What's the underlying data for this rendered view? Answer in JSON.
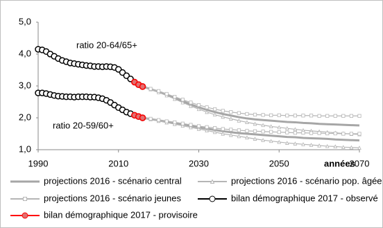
{
  "chart_data": {
    "type": "line",
    "x_label": "années",
    "annotations": [
      "ratio 20-64/65+",
      "ratio 20-59/60+"
    ],
    "xlim": [
      1990,
      2070
    ],
    "xticks": [
      1990,
      2010,
      2030,
      2050,
      2070
    ],
    "ylim": [
      1,
      5
    ],
    "yticks": [
      {
        "value": 1,
        "label": "1,0"
      },
      {
        "value": 2,
        "label": "2,0"
      },
      {
        "value": 3,
        "label": "3,0"
      },
      {
        "value": 4,
        "label": "4,0"
      },
      {
        "value": 5,
        "label": "5,0"
      }
    ],
    "grid": false,
    "series": [
      {
        "name": "projections 2016 - scénario central",
        "color": "#a6a6a6",
        "marker": "none",
        "x": [
          2016,
          2018,
          2020,
          2022,
          2024,
          2026,
          2028,
          2030,
          2032,
          2034,
          2036,
          2038,
          2040,
          2042,
          2044,
          2046,
          2048,
          2050,
          2052,
          2054,
          2056,
          2058,
          2060,
          2062,
          2064,
          2066,
          2068,
          2070
        ],
        "values": [
          2.98,
          2.9,
          2.82,
          2.72,
          2.62,
          2.52,
          2.42,
          2.33,
          2.25,
          2.18,
          2.12,
          2.07,
          2.02,
          1.98,
          1.95,
          1.93,
          1.91,
          1.89,
          1.87,
          1.86,
          1.84,
          1.83,
          1.81,
          1.8,
          1.79,
          1.78,
          1.77,
          1.76
        ],
        "values2": [
          2.0,
          1.96,
          1.92,
          1.88,
          1.84,
          1.8,
          1.75,
          1.7,
          1.66,
          1.62,
          1.58,
          1.55,
          1.52,
          1.5,
          1.48,
          1.46,
          1.44,
          1.42,
          1.4,
          1.39,
          1.37,
          1.36,
          1.35,
          1.34,
          1.32,
          1.31,
          1.3,
          1.29
        ]
      },
      {
        "name": "projections 2016 - scénario pop. âgée",
        "color": "#b5b5b5",
        "marker": "triangle",
        "x": [
          2016,
          2018,
          2020,
          2022,
          2024,
          2026,
          2028,
          2030,
          2032,
          2034,
          2036,
          2038,
          2040,
          2042,
          2044,
          2046,
          2048,
          2050,
          2052,
          2054,
          2056,
          2058,
          2060,
          2062,
          2064,
          2066,
          2068,
          2070
        ],
        "values": [
          2.98,
          2.89,
          2.8,
          2.7,
          2.59,
          2.48,
          2.37,
          2.27,
          2.18,
          2.1,
          2.03,
          1.97,
          1.91,
          1.86,
          1.81,
          1.77,
          1.73,
          1.7,
          1.67,
          1.64,
          1.61,
          1.59,
          1.57,
          1.55,
          1.53,
          1.51,
          1.49,
          1.48
        ],
        "values2": [
          2.0,
          1.95,
          1.9,
          1.85,
          1.8,
          1.75,
          1.7,
          1.65,
          1.6,
          1.55,
          1.5,
          1.46,
          1.42,
          1.38,
          1.34,
          1.3,
          1.27,
          1.24,
          1.21,
          1.19,
          1.17,
          1.15,
          1.13,
          1.11,
          1.1,
          1.08,
          1.07,
          1.06
        ]
      },
      {
        "name": "projections 2016 - scénario jeunes",
        "color": "#b5b5b5",
        "marker": "square",
        "x": [
          2016,
          2018,
          2020,
          2022,
          2024,
          2026,
          2028,
          2030,
          2032,
          2034,
          2036,
          2038,
          2040,
          2042,
          2044,
          2046,
          2048,
          2050,
          2052,
          2054,
          2056,
          2058,
          2060,
          2062,
          2064,
          2066,
          2068,
          2070
        ],
        "values": [
          2.98,
          2.91,
          2.84,
          2.75,
          2.66,
          2.57,
          2.48,
          2.4,
          2.33,
          2.27,
          2.22,
          2.18,
          2.15,
          2.12,
          2.1,
          2.09,
          2.08,
          2.08,
          2.07,
          2.07,
          2.07,
          2.07,
          2.06,
          2.06,
          2.06,
          2.06,
          2.06,
          2.06
        ],
        "values2": [
          2.0,
          1.97,
          1.93,
          1.89,
          1.86,
          1.82,
          1.78,
          1.74,
          1.71,
          1.68,
          1.65,
          1.63,
          1.61,
          1.59,
          1.58,
          1.57,
          1.56,
          1.55,
          1.54,
          1.53,
          1.53,
          1.52,
          1.52,
          1.51,
          1.51,
          1.5,
          1.5,
          1.5
        ]
      },
      {
        "name": "bilan démographique 2017 - observé",
        "color": "#000000",
        "marker": "circle",
        "marker_fill": "#ffffff",
        "x": [
          1990,
          1991,
          1992,
          1993,
          1994,
          1995,
          1996,
          1997,
          1998,
          1999,
          2000,
          2001,
          2002,
          2003,
          2004,
          2005,
          2006,
          2007,
          2008,
          2009,
          2010,
          2011,
          2012,
          2013,
          2014,
          2015,
          2016
        ],
        "values": [
          4.15,
          4.13,
          4.08,
          4.0,
          3.93,
          3.86,
          3.8,
          3.76,
          3.72,
          3.7,
          3.68,
          3.66,
          3.64,
          3.63,
          3.61,
          3.61,
          3.6,
          3.61,
          3.6,
          3.58,
          3.52,
          3.42,
          3.32,
          3.22,
          3.12,
          3.04,
          2.98
        ],
        "values2": [
          2.78,
          2.78,
          2.76,
          2.73,
          2.7,
          2.68,
          2.67,
          2.66,
          2.66,
          2.65,
          2.66,
          2.66,
          2.66,
          2.65,
          2.65,
          2.63,
          2.6,
          2.55,
          2.48,
          2.4,
          2.32,
          2.25,
          2.18,
          2.13,
          2.08,
          2.04,
          2.0
        ]
      },
      {
        "name": "bilan démographique 2017 - provisoire",
        "color": "#ff0000",
        "marker": "circle",
        "marker_fill": "#e07070",
        "x": [
          2014,
          2015,
          2016
        ],
        "values": [
          3.12,
          3.04,
          2.98
        ],
        "values2": [
          2.08,
          2.04,
          2.0
        ]
      }
    ]
  }
}
